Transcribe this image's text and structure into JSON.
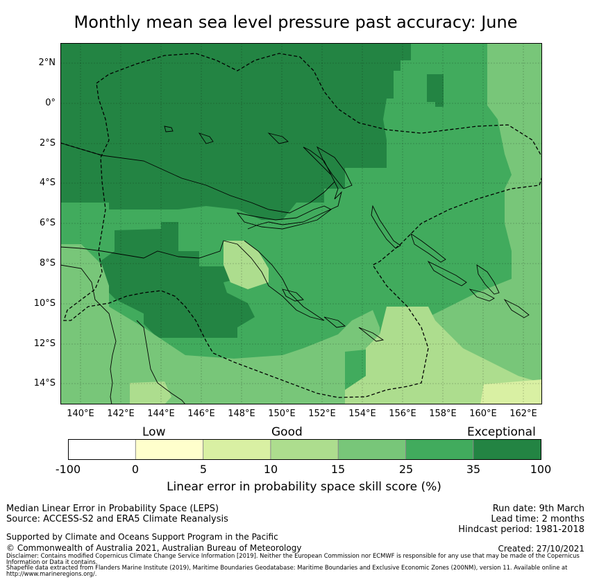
{
  "title": "Monthly mean sea level pressure past accuracy: June",
  "map": {
    "lat_labels": [
      "2°N",
      "0°",
      "2°S",
      "4°S",
      "6°S",
      "8°S",
      "10°S",
      "12°S",
      "14°S"
    ],
    "lon_labels": [
      "140°E",
      "142°E",
      "144°E",
      "146°E",
      "148°E",
      "150°E",
      "152°E",
      "154°E",
      "156°E",
      "158°E",
      "160°E",
      "162°E"
    ]
  },
  "legend": {
    "categories": [
      "Low",
      "Good",
      "Exceptional"
    ],
    "ticks": [
      "-100",
      "0",
      "5",
      "10",
      "15",
      "25",
      "35",
      "100"
    ],
    "colors": [
      "#ffffff",
      "#ffffcc",
      "#d9f0a3",
      "#addd8e",
      "#78c679",
      "#41ab5d",
      "#238443"
    ],
    "label": "Linear error in probability space skill score (%)"
  },
  "footer": {
    "method": "Median Linear Error in Probability Space (LEPS)",
    "source": "Source: ACCESS-S2 and ERA5 Climate Reanalysis",
    "run_date": "Run date: 9th March",
    "lead_time": "Lead time: 2 months",
    "hindcast": "Hindcast period: 1981-2018",
    "support": "Supported by Climate and Oceans Support Program in the Pacific",
    "copyright": "© Commonwealth of Australia 2021, Australian Bureau of Meteorology",
    "created": "Created: 27/10/2021",
    "disclaimer": "Disclaimer: Contains modified Copernicus Climate Change Service Information [2019]. Neither the European Commission nor ECMWF is responsible for any use that may be made of the Copernicus Information or Data it contains.",
    "shapefile": "Shapefile data extracted from Flanders Marine Institute (2019), Maritime Boundaries Geodatabase: Maritime Boundaries and Exclusive Economic Zones (200NM), version 11. Available online at http://www.marineregions.org/."
  }
}
